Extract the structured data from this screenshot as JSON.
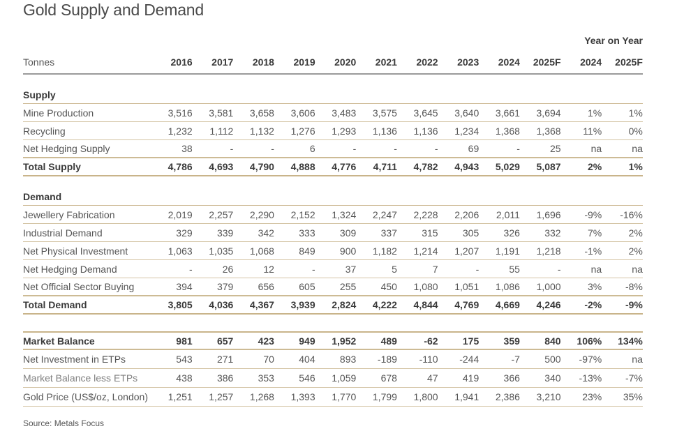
{
  "title": "Gold Supply and Demand",
  "yoy_label": "Year on Year",
  "header": {
    "label": "Tonnes",
    "columns": [
      "2016",
      "2017",
      "2018",
      "2019",
      "2020",
      "2021",
      "2022",
      "2023",
      "2024",
      "2025F",
      "2024",
      "2025F"
    ]
  },
  "supply": {
    "heading": "Supply",
    "rows": [
      {
        "label": "Mine Production",
        "values": [
          "3,516",
          "3,581",
          "3,658",
          "3,606",
          "3,483",
          "3,575",
          "3,645",
          "3,640",
          "3,661",
          "3,694",
          "1%",
          "1%"
        ]
      },
      {
        "label": "Recycling",
        "values": [
          "1,232",
          "1,112",
          "1,132",
          "1,276",
          "1,293",
          "1,136",
          "1,136",
          "1,234",
          "1,368",
          "1,368",
          "11%",
          "0%"
        ]
      },
      {
        "label": "Net Hedging Supply",
        "values": [
          "38",
          "-",
          "-",
          "6",
          "-",
          "-",
          "-",
          "69",
          "-",
          "25",
          "na",
          "na"
        ]
      }
    ],
    "total": {
      "label": "Total Supply",
      "values": [
        "4,786",
        "4,693",
        "4,790",
        "4,888",
        "4,776",
        "4,711",
        "4,782",
        "4,943",
        "5,029",
        "5,087",
        "2%",
        "1%"
      ]
    }
  },
  "demand": {
    "heading": "Demand",
    "rows": [
      {
        "label": "Jewellery Fabrication",
        "values": [
          "2,019",
          "2,257",
          "2,290",
          "2,152",
          "1,324",
          "2,247",
          "2,228",
          "2,206",
          "2,011",
          "1,696",
          "-9%",
          "-16%"
        ]
      },
      {
        "label": "Industrial Demand",
        "values": [
          "329",
          "339",
          "342",
          "333",
          "309",
          "337",
          "315",
          "305",
          "326",
          "332",
          "7%",
          "2%"
        ]
      },
      {
        "label": "Net Physical Investment",
        "values": [
          "1,063",
          "1,035",
          "1,068",
          "849",
          "900",
          "1,182",
          "1,214",
          "1,207",
          "1,191",
          "1,218",
          "-1%",
          "2%"
        ]
      },
      {
        "label": "Net Hedging Demand",
        "values": [
          "-",
          "26",
          "12",
          "-",
          "37",
          "5",
          "7",
          "-",
          "55",
          "-",
          "na",
          "na"
        ]
      },
      {
        "label": "Net Official Sector Buying",
        "values": [
          "394",
          "379",
          "656",
          "605",
          "255",
          "450",
          "1,080",
          "1,051",
          "1,086",
          "1,000",
          "3%",
          "-8%"
        ]
      }
    ],
    "total": {
      "label": "Total Demand",
      "values": [
        "3,805",
        "4,036",
        "4,367",
        "3,939",
        "2,824",
        "4,222",
        "4,844",
        "4,769",
        "4,669",
        "4,246",
        "-2%",
        "-9%"
      ]
    }
  },
  "balance": {
    "main": {
      "label": "Market Balance",
      "values": [
        "981",
        "657",
        "423",
        "949",
        "1,952",
        "489",
        "-62",
        "175",
        "359",
        "840",
        "106%",
        "134%"
      ]
    },
    "rows": [
      {
        "label": "Net Investment in ETPs",
        "values": [
          "543",
          "271",
          "70",
          "404",
          "893",
          "-189",
          "-110",
          "-244",
          "-7",
          "500",
          "-97%",
          "na"
        ]
      },
      {
        "label": "Market Balance less ETPs",
        "values": [
          "438",
          "386",
          "353",
          "546",
          "1,059",
          "678",
          "47",
          "419",
          "366",
          "340",
          "-13%",
          "-7%"
        ]
      },
      {
        "label": "Gold Price (US$/oz, London)",
        "values": [
          "1,251",
          "1,257",
          "1,268",
          "1,393",
          "1,770",
          "1,799",
          "1,800",
          "1,941",
          "2,386",
          "3,210",
          "23%",
          "35%"
        ]
      }
    ]
  },
  "source": "Source: Metals Focus",
  "colors": {
    "rule_gold": "#c9b48a",
    "header_rule": "#9a9a9a",
    "text": "#3a3a3a"
  }
}
